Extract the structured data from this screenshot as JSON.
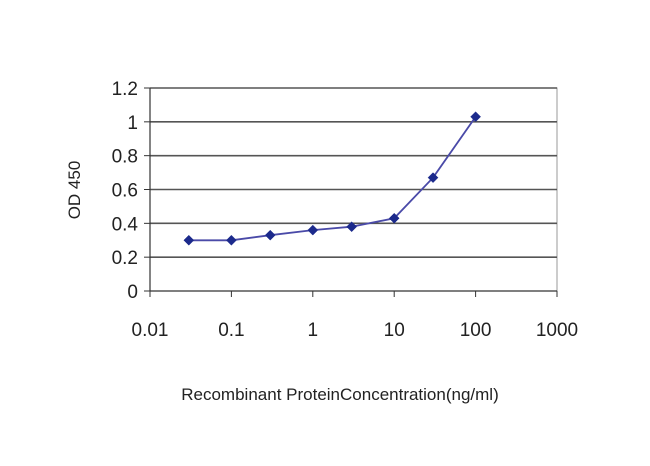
{
  "chart_data": {
    "type": "line",
    "title": "",
    "xlabel": "Recombinant ProteinConcentration(ng/ml)",
    "ylabel": "OD 450",
    "x_scale": "log",
    "xlim": [
      0.01,
      1000
    ],
    "ylim": [
      0,
      1.2
    ],
    "x_ticks": [
      "0.01",
      "0.1",
      "1",
      "10",
      "100",
      "1000"
    ],
    "y_ticks": [
      "0",
      "0.2",
      "0.4",
      "0.6",
      "0.8",
      "1",
      "1.2"
    ],
    "grid": "horizontal",
    "legend": "none",
    "series": [
      {
        "x": [
          0.03,
          0.1,
          0.3,
          1,
          3,
          10,
          30,
          100
        ],
        "y": [
          0.3,
          0.3,
          0.33,
          0.36,
          0.38,
          0.43,
          0.67,
          1.03
        ]
      }
    ],
    "colors": {
      "line": "#4a4aa8",
      "marker": "#1c2a8c",
      "grid": "#555555",
      "plot_background": "#ffffff"
    }
  }
}
